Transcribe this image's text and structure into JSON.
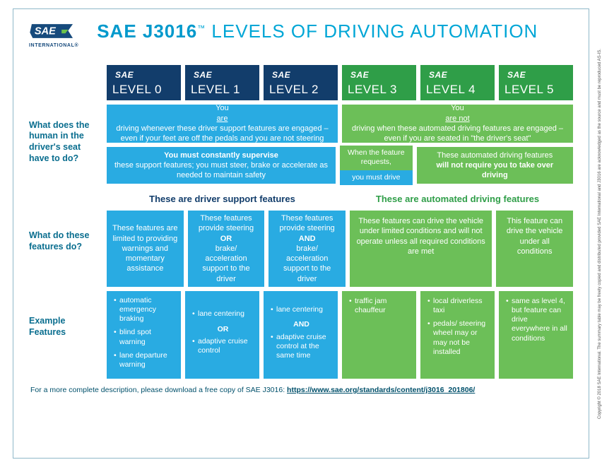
{
  "logo": {
    "text": "SAE",
    "sub": "INTERNATIONAL®"
  },
  "title": {
    "bold": "SAE J3016",
    "tm": "™",
    "rest": "LEVELS OF DRIVING AUTOMATION"
  },
  "colors": {
    "tab_blue": "#123d6b",
    "tab_green": "#2f9e48",
    "cell_blue": "#29abe2",
    "cell_green": "#6cbf58",
    "frame_border": "#8fb8c9",
    "title_color": "#00a6d6",
    "rowlabel_color": "#0a6e8f"
  },
  "levels": [
    {
      "flag": "SAE",
      "label": "LEVEL 0",
      "group": "blue"
    },
    {
      "flag": "SAE",
      "label": "LEVEL 1",
      "group": "blue"
    },
    {
      "flag": "SAE",
      "label": "LEVEL 2",
      "group": "blue"
    },
    {
      "flag": "SAE",
      "label": "LEVEL 3",
      "group": "green"
    },
    {
      "flag": "SAE",
      "label": "LEVEL 4",
      "group": "green"
    },
    {
      "flag": "SAE",
      "label": "LEVEL 5",
      "group": "green"
    }
  ],
  "rowlabels": {
    "human": "What does the human in the driver's seat have to do?",
    "features": "What do these features do?",
    "examples": "Example Features"
  },
  "human_row1": {
    "left": "You <u>are</u> driving whenever these driver support features are engaged – even if your feet are off the pedals and you are not steering",
    "right": "You <u>are not</u> driving when these automated driving features are engaged – even if you are seated in \"the driver's seat\""
  },
  "human_row2": {
    "left": "<b>You must constantly supervise</b> these support features; you must steer, brake or accelerate as needed to maintain safety",
    "mid_top": "When the feature requests,",
    "mid_bot": "you must drive",
    "right": "These automated driving features <b>will not require you to take over driving</b>"
  },
  "category_heads": {
    "left": "These are driver support features",
    "right": "These are automated driving features"
  },
  "features_row": {
    "c0": "These features are limited to providing warnings and momentary assistance",
    "c1": "These features provide steering <b>OR</b> brake/ acceleration support to the driver",
    "c2": "These features provide steering <b>AND</b> brake/ acceleration support to the driver",
    "c34": "These features can drive the vehicle under limited conditions and will not operate unless all required conditions are met",
    "c5": "This feature can drive the vehicle under all conditions"
  },
  "examples": {
    "c0": [
      "automatic emergency braking",
      "blind spot warning",
      "lane departure warning"
    ],
    "c1": {
      "a": "lane centering",
      "mid": "OR",
      "b": "adaptive cruise control"
    },
    "c2": {
      "a": "lane centering",
      "mid": "AND",
      "b": "adaptive cruise control at the same time"
    },
    "c3": [
      "traffic jam chauffeur"
    ],
    "c4": [
      "local driverless taxi",
      "pedals/ steering wheel may or may not be installed"
    ],
    "c5": [
      "same as level 4, but feature can drive everywhere in all conditions"
    ]
  },
  "footer": {
    "text": "For a more complete description, please download a free copy of SAE J3016: ",
    "link_text": "https://www.sae.org/standards/content/j3016_201806/"
  },
  "copyright": "Copyright © 2018 SAE International. The summary table may be freely copied and distributed provided SAE International and J3016 are acknowledged as the source and must be reproduced AS-IS."
}
